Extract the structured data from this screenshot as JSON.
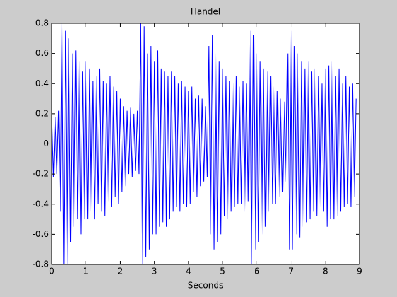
{
  "chart_data": {
    "type": "line",
    "title": "Handel",
    "x_label": "Seconds",
    "x": [
      0,
      0.05,
      0.1,
      0.15,
      0.2,
      0.25,
      0.3,
      0.35,
      0.4,
      0.45,
      0.5,
      0.55,
      0.6,
      0.65,
      0.7,
      0.75,
      0.8,
      0.85,
      0.9,
      0.95,
      1,
      1.05,
      1.1,
      1.15,
      1.2,
      1.25,
      1.3,
      1.35,
      1.4,
      1.45,
      1.5,
      1.55,
      1.6,
      1.65,
      1.7,
      1.75,
      1.8,
      1.85,
      1.9,
      1.95,
      2,
      2.05,
      2.1,
      2.15,
      2.2,
      2.25,
      2.3,
      2.35,
      2.4,
      2.45,
      2.5,
      2.55,
      2.6,
      2.65,
      2.7,
      2.75,
      2.8,
      2.85,
      2.9,
      2.95,
      3,
      3.05,
      3.1,
      3.15,
      3.2,
      3.25,
      3.3,
      3.35,
      3.4,
      3.45,
      3.5,
      3.55,
      3.6,
      3.65,
      3.7,
      3.75,
      3.8,
      3.85,
      3.9,
      3.95,
      4,
      4.05,
      4.1,
      4.15,
      4.2,
      4.25,
      4.3,
      4.35,
      4.4,
      4.45,
      4.5,
      4.55,
      4.6,
      4.65,
      4.7,
      4.75,
      4.8,
      4.85,
      4.9,
      4.95,
      5,
      5.05,
      5.1,
      5.15,
      5.2,
      5.25,
      5.3,
      5.35,
      5.4,
      5.45,
      5.5,
      5.55,
      5.6,
      5.65,
      5.7,
      5.75,
      5.8,
      5.85,
      5.9,
      5.95,
      6,
      6.05,
      6.1,
      6.15,
      6.2,
      6.25,
      6.3,
      6.35,
      6.4,
      6.45,
      6.5,
      6.55,
      6.6,
      6.65,
      6.7,
      6.75,
      6.8,
      6.85,
      6.9,
      6.95,
      7,
      7.05,
      7.1,
      7.15,
      7.2,
      7.25,
      7.3,
      7.35,
      7.4,
      7.45,
      7.5,
      7.55,
      7.6,
      7.65,
      7.7,
      7.75,
      7.8,
      7.85,
      7.9,
      7.95,
      8,
      8.05,
      8.1,
      8.15,
      8.2,
      8.25,
      8.3,
      8.35,
      8.4,
      8.45,
      8.5,
      8.55,
      8.6,
      8.65,
      8.7,
      8.75,
      8.8,
      8.85,
      8.9
    ],
    "series": [
      {
        "color": "#0000ff",
        "values": [
          0.2,
          -0.22,
          0.18,
          -0.2,
          0.22,
          -0.45,
          0.8,
          -0.8,
          0.75,
          -0.8,
          0.7,
          -0.65,
          0.6,
          -0.55,
          0.62,
          -0.5,
          0.55,
          -0.6,
          0.48,
          -0.5,
          0.55,
          -0.5,
          0.5,
          -0.45,
          0.42,
          -0.5,
          0.45,
          -0.4,
          0.5,
          -0.45,
          0.42,
          -0.48,
          0.4,
          -0.38,
          0.45,
          -0.42,
          0.38,
          -0.35,
          0.35,
          -0.4,
          0.3,
          -0.32,
          0.25,
          -0.28,
          0.22,
          -0.2,
          0.24,
          -0.22,
          0.2,
          -0.18,
          0.22,
          -0.2,
          0.8,
          -0.8,
          0.78,
          -0.75,
          0.6,
          -0.7,
          0.65,
          -0.6,
          0.55,
          -0.6,
          0.62,
          -0.55,
          0.5,
          -0.52,
          0.48,
          -0.55,
          0.45,
          -0.5,
          0.48,
          -0.45,
          0.45,
          -0.42,
          0.4,
          -0.45,
          0.42,
          -0.4,
          0.38,
          -0.42,
          0.35,
          -0.4,
          0.38,
          -0.32,
          0.3,
          -0.35,
          0.32,
          -0.28,
          0.3,
          -0.25,
          0.25,
          -0.22,
          0.65,
          -0.6,
          0.72,
          -0.7,
          0.6,
          -0.65,
          0.55,
          -0.6,
          0.5,
          -0.48,
          0.45,
          -0.5,
          0.42,
          -0.45,
          0.4,
          -0.42,
          0.45,
          -0.4,
          0.38,
          -0.4,
          0.42,
          -0.45,
          0.4,
          -0.38,
          0.75,
          -0.8,
          0.72,
          -0.7,
          0.6,
          -0.65,
          0.55,
          -0.6,
          0.5,
          -0.55,
          0.48,
          -0.45,
          0.45,
          -0.4,
          0.38,
          -0.4,
          0.35,
          -0.35,
          0.3,
          -0.32,
          0.28,
          -0.25,
          0.6,
          -0.7,
          0.75,
          -0.7,
          0.65,
          -0.6,
          0.6,
          -0.62,
          0.55,
          -0.55,
          0.5,
          -0.52,
          0.55,
          -0.5,
          0.48,
          -0.45,
          0.5,
          -0.48,
          0.45,
          -0.42,
          0.4,
          -0.45,
          0.5,
          -0.55,
          0.52,
          -0.5,
          0.55,
          -0.5,
          0.45,
          -0.48,
          0.5,
          -0.45,
          0.4,
          -0.42,
          0.45,
          -0.4,
          0.38,
          -0.42,
          0.4,
          -0.35,
          0.3
        ]
      }
    ],
    "xlim": [
      0,
      9
    ],
    "xticks": [
      0,
      1,
      2,
      3,
      4,
      5,
      6,
      7,
      8,
      9
    ],
    "ylim": [
      -0.8,
      0.8
    ],
    "yticks": [
      -0.8,
      -0.6,
      -0.4,
      -0.2,
      0,
      0.2,
      0.4,
      0.6,
      0.8
    ],
    "grid": false
  }
}
